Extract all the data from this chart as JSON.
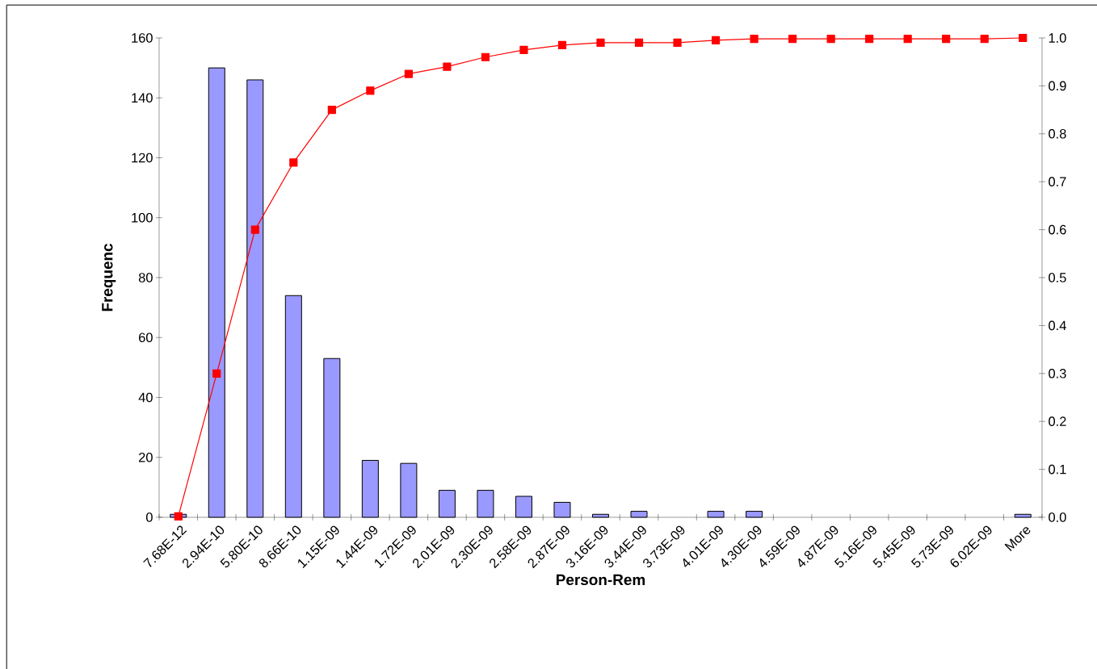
{
  "chart_data": {
    "type": "bar",
    "xlabel": "Person-Rem",
    "ylabel": "Frequenc",
    "categories": [
      "7.68E-12",
      "2.94E-10",
      "5.80E-10",
      "8.66E-10",
      "1.15E-09",
      "1.44E-09",
      "1.72E-09",
      "2.01E-09",
      "2.30E-09",
      "2.58E-09",
      "2.87E-09",
      "3.16E-09",
      "3.44E-09",
      "3.73E-09",
      "4.01E-09",
      "4.30E-09",
      "4.59E-09",
      "4.87E-09",
      "5.16E-09",
      "5.45E-09",
      "5.73E-09",
      "6.02E-09",
      "More"
    ],
    "series": [
      {
        "color": "#9999ff",
        "values": [
          1,
          150,
          146,
          74,
          53,
          19,
          18,
          9,
          9,
          7,
          5,
          1,
          2,
          0,
          2,
          2,
          0,
          0,
          0,
          0,
          0,
          0,
          1
        ]
      },
      {
        "type": "line",
        "axis": "y2",
        "color": "#ff0000",
        "marker": "square",
        "values": [
          0.002,
          0.3,
          0.6,
          0.74,
          0.85,
          0.89,
          0.925,
          0.94,
          0.96,
          0.975,
          0.985,
          0.99,
          0.99,
          0.99,
          0.995,
          0.998,
          0.998,
          0.998,
          0.998,
          0.998,
          0.998,
          0.998,
          1.0
        ]
      }
    ],
    "ylim": [
      0,
      160
    ],
    "yticks": [
      0,
      20,
      40,
      60,
      80,
      100,
      120,
      140,
      160
    ],
    "y2lim": [
      0,
      1
    ],
    "y2ticks": [
      {
        "value": 0,
        "label": "0.0"
      },
      0.1,
      0.2,
      0.3,
      0.4,
      0.5,
      0.6,
      0.7,
      0.8,
      0.9,
      {
        "value": 1,
        "label": "1.0"
      }
    ]
  }
}
